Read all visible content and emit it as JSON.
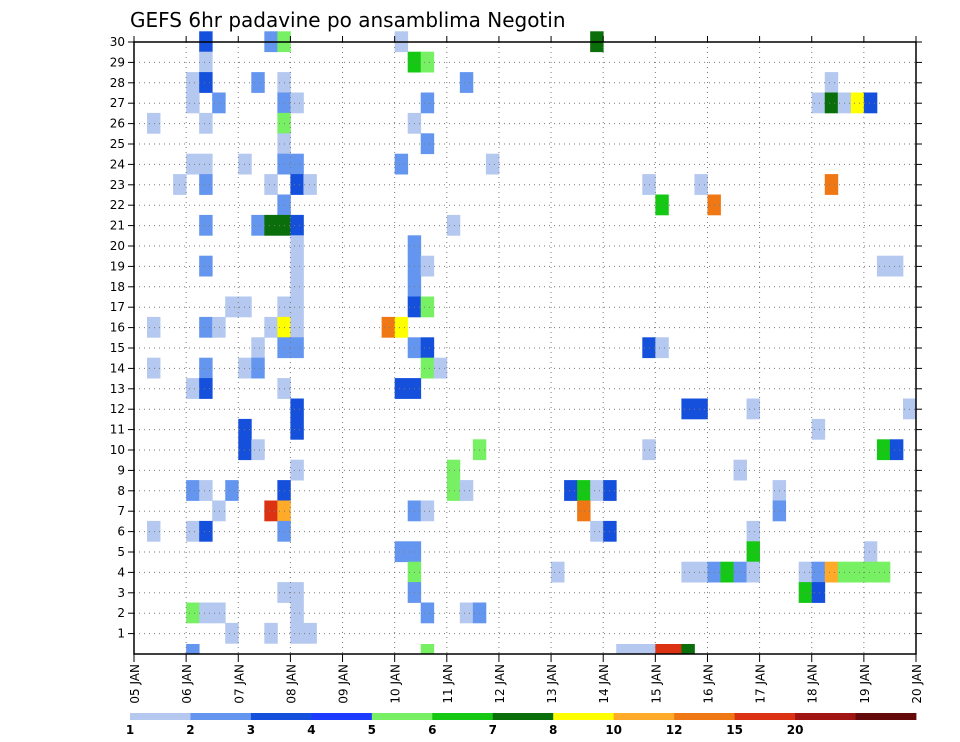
{
  "chart_data": {
    "type": "heatmap",
    "title": "GEFS 6hr padavine po ansamblima Negotin",
    "xlabel": "",
    "ylabel": "",
    "x_tick_labels": [
      "05 JAN",
      "06 JAN",
      "07 JAN",
      "08 JAN",
      "09 JAN",
      "10 JAN",
      "11 JAN",
      "12 JAN",
      "13 JAN",
      "14 JAN",
      "15 JAN",
      "16 JAN",
      "17 JAN",
      "18 JAN",
      "19 JAN",
      "20 JAN"
    ],
    "y_tick_labels": [
      "1",
      "2",
      "3",
      "4",
      "5",
      "6",
      "7",
      "8",
      "9",
      "10",
      "11",
      "12",
      "13",
      "14",
      "15",
      "16",
      "17",
      "18",
      "19",
      "20",
      "21",
      "22",
      "23",
      "24",
      "25",
      "26",
      "27",
      "28",
      "29",
      "30"
    ],
    "xlim_days": [
      0,
      15
    ],
    "ylim_members": [
      0,
      30
    ],
    "time_step_hours": 6,
    "grid": true,
    "legend": {
      "position": "bottom",
      "labels": [
        "1",
        "2",
        "3",
        "4",
        "5",
        "6",
        "7",
        "8",
        "10",
        "12",
        "15",
        "20"
      ],
      "colors": [
        "#b4c8f0",
        "#6496f0",
        "#1450dc",
        "#1e3cff",
        "#78f064",
        "#14c814",
        "#0a6e0a",
        "#ffff00",
        "#ffaa28",
        "#f07814",
        "#dc3214",
        "#a01414",
        "#640a0a"
      ]
    },
    "color_levels": {
      "1": "#b4c8f0",
      "2": "#6496f0",
      "3": "#1450dc",
      "5": "#78f064",
      "6": "#14c814",
      "7": "#0a6e0a",
      "8": "#ffff00",
      "10": "#ffaa28",
      "12": "#f07814",
      "15": "#dc3214"
    },
    "cells": [
      {
        "m": 30,
        "s": [
          [
            5,
            3
          ],
          [
            10,
            2
          ],
          [
            11,
            5
          ],
          [
            20,
            1
          ],
          [
            35,
            7
          ]
        ]
      },
      {
        "m": 29,
        "s": [
          [
            5,
            1
          ],
          [
            21,
            6
          ],
          [
            22,
            5
          ]
        ]
      },
      {
        "m": 28,
        "s": [
          [
            4,
            1
          ],
          [
            5,
            3
          ],
          [
            9,
            2
          ],
          [
            11,
            1
          ],
          [
            25,
            2
          ],
          [
            53,
            1
          ]
        ]
      },
      {
        "m": 27,
        "s": [
          [
            4,
            1
          ],
          [
            6,
            2
          ],
          [
            11,
            2
          ],
          [
            12,
            1
          ],
          [
            22,
            2
          ],
          [
            52,
            1
          ],
          [
            53,
            7
          ],
          [
            54,
            1
          ],
          [
            55,
            8
          ],
          [
            56,
            3
          ]
        ]
      },
      {
        "m": 26,
        "s": [
          [
            1,
            1
          ],
          [
            5,
            1
          ],
          [
            11,
            5
          ],
          [
            21,
            1
          ]
        ]
      },
      {
        "m": 25,
        "s": [
          [
            11,
            1
          ],
          [
            22,
            2
          ]
        ]
      },
      {
        "m": 24,
        "s": [
          [
            4,
            1
          ],
          [
            5,
            1
          ],
          [
            8,
            1
          ],
          [
            11,
            2
          ],
          [
            12,
            2
          ],
          [
            20,
            2
          ],
          [
            27,
            1
          ]
        ]
      },
      {
        "m": 23,
        "s": [
          [
            3,
            1
          ],
          [
            5,
            2
          ],
          [
            10,
            1
          ],
          [
            12,
            3
          ],
          [
            13,
            1
          ],
          [
            39,
            1
          ],
          [
            43,
            1
          ],
          [
            53,
            12
          ]
        ]
      },
      {
        "m": 22,
        "s": [
          [
            11,
            2
          ],
          [
            40,
            6
          ],
          [
            44,
            12
          ]
        ]
      },
      {
        "m": 21,
        "s": [
          [
            5,
            2
          ],
          [
            9,
            2
          ],
          [
            10,
            7
          ],
          [
            11,
            7
          ],
          [
            12,
            3
          ],
          [
            24,
            1
          ]
        ]
      },
      {
        "m": 20,
        "s": [
          [
            12,
            1
          ],
          [
            21,
            2
          ]
        ]
      },
      {
        "m": 19,
        "s": [
          [
            5,
            2
          ],
          [
            12,
            1
          ],
          [
            21,
            2
          ],
          [
            22,
            1
          ],
          [
            57,
            1
          ],
          [
            58,
            1
          ]
        ]
      },
      {
        "m": 18,
        "s": [
          [
            12,
            1
          ],
          [
            21,
            2
          ]
        ]
      },
      {
        "m": 17,
        "s": [
          [
            7,
            1
          ],
          [
            8,
            1
          ],
          [
            11,
            1
          ],
          [
            12,
            1
          ],
          [
            21,
            3
          ],
          [
            22,
            5
          ]
        ]
      },
      {
        "m": 16,
        "s": [
          [
            1,
            1
          ],
          [
            5,
            2
          ],
          [
            6,
            1
          ],
          [
            10,
            1
          ],
          [
            11,
            8
          ],
          [
            12,
            1
          ],
          [
            19,
            12
          ],
          [
            20,
            8
          ]
        ]
      },
      {
        "m": 15,
        "s": [
          [
            9,
            1
          ],
          [
            11,
            2
          ],
          [
            12,
            2
          ],
          [
            21,
            2
          ],
          [
            22,
            3
          ],
          [
            39,
            3
          ],
          [
            40,
            1
          ]
        ]
      },
      {
        "m": 14,
        "s": [
          [
            1,
            1
          ],
          [
            5,
            2
          ],
          [
            8,
            1
          ],
          [
            9,
            2
          ],
          [
            22,
            5
          ],
          [
            23,
            1
          ]
        ]
      },
      {
        "m": 13,
        "s": [
          [
            4,
            1
          ],
          [
            5,
            3
          ],
          [
            11,
            1
          ],
          [
            20,
            3
          ],
          [
            21,
            3
          ]
        ]
      },
      {
        "m": 12,
        "s": [
          [
            12,
            3
          ],
          [
            42,
            3
          ],
          [
            43,
            3
          ],
          [
            47,
            1
          ],
          [
            59,
            1
          ]
        ]
      },
      {
        "m": 11,
        "s": [
          [
            8,
            3
          ],
          [
            12,
            3
          ],
          [
            52,
            1
          ]
        ]
      },
      {
        "m": 10,
        "s": [
          [
            8,
            3
          ],
          [
            9,
            1
          ],
          [
            26,
            5
          ],
          [
            39,
            1
          ],
          [
            57,
            6
          ],
          [
            58,
            3
          ]
        ]
      },
      {
        "m": 9,
        "s": [
          [
            12,
            1
          ],
          [
            24,
            5
          ],
          [
            46,
            1
          ]
        ]
      },
      {
        "m": 8,
        "s": [
          [
            4,
            2
          ],
          [
            5,
            1
          ],
          [
            7,
            2
          ],
          [
            11,
            3
          ],
          [
            24,
            5
          ],
          [
            25,
            1
          ],
          [
            33,
            3
          ],
          [
            34,
            6
          ],
          [
            35,
            1
          ],
          [
            36,
            3
          ],
          [
            49,
            1
          ]
        ]
      },
      {
        "m": 7,
        "s": [
          [
            6,
            1
          ],
          [
            10,
            15
          ],
          [
            11,
            10
          ],
          [
            21,
            2
          ],
          [
            22,
            1
          ],
          [
            34,
            12
          ],
          [
            49,
            2
          ]
        ]
      },
      {
        "m": 6,
        "s": [
          [
            1,
            1
          ],
          [
            4,
            1
          ],
          [
            5,
            3
          ],
          [
            11,
            2
          ],
          [
            35,
            1
          ],
          [
            36,
            3
          ],
          [
            47,
            1
          ]
        ]
      },
      {
        "m": 5,
        "s": [
          [
            20,
            2
          ],
          [
            21,
            2
          ],
          [
            47,
            6
          ],
          [
            56,
            1
          ]
        ]
      },
      {
        "m": 4,
        "s": [
          [
            21,
            5
          ],
          [
            32,
            1
          ],
          [
            42,
            1
          ],
          [
            43,
            1
          ],
          [
            44,
            2
          ],
          [
            45,
            6
          ],
          [
            46,
            2
          ],
          [
            47,
            1
          ],
          [
            51,
            1
          ],
          [
            52,
            2
          ],
          [
            53,
            10
          ],
          [
            54,
            5
          ],
          [
            55,
            5
          ],
          [
            56,
            5
          ],
          [
            57,
            5
          ]
        ]
      },
      {
        "m": 3,
        "s": [
          [
            11,
            1
          ],
          [
            12,
            1
          ],
          [
            21,
            2
          ],
          [
            51,
            6
          ],
          [
            52,
            3
          ]
        ]
      },
      {
        "m": 2,
        "s": [
          [
            4,
            5
          ],
          [
            5,
            1
          ],
          [
            6,
            1
          ],
          [
            12,
            1
          ],
          [
            22,
            2
          ],
          [
            25,
            1
          ],
          [
            26,
            2
          ]
        ]
      },
      {
        "m": 1,
        "s": [
          [
            7,
            1
          ],
          [
            10,
            1
          ],
          [
            12,
            1
          ],
          [
            13,
            1
          ]
        ]
      },
      {
        "m": 0,
        "s": [
          [
            4,
            2
          ],
          [
            22,
            5
          ],
          [
            37,
            1
          ],
          [
            38,
            1
          ],
          [
            39,
            1
          ],
          [
            40,
            15
          ],
          [
            41,
            15
          ],
          [
            42,
            7
          ]
        ]
      }
    ]
  }
}
